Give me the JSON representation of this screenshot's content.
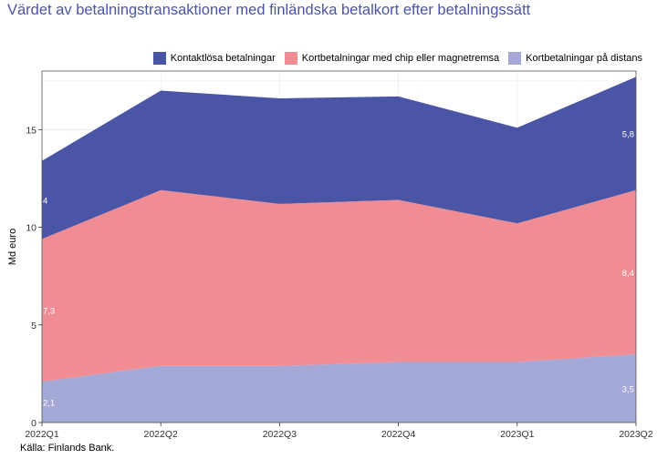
{
  "title": "Värdet av betalningstransaktioner med finländska betalkort efter betalningssätt",
  "source": "Källa: Finlands Bank.",
  "chart_data": {
    "type": "area",
    "stacked": true,
    "categories": [
      "2022Q1",
      "2022Q2",
      "2022Q3",
      "2022Q4",
      "2023Q1",
      "2023Q2"
    ],
    "ylabel": "Md euro",
    "ylim": [
      0,
      18
    ],
    "yticks": [
      0,
      5,
      10,
      15
    ],
    "grid": true,
    "legend_position": "top",
    "series": [
      {
        "name": "Kortbetalningar på distans",
        "color": "#a3a8d6",
        "values": [
          2.1,
          2.9,
          2.9,
          3.1,
          3.1,
          3.5
        ]
      },
      {
        "name": "Kortbetalningar med chip eller magnetremsa",
        "color": "#f08c93",
        "values": [
          7.3,
          9.0,
          8.3,
          8.3,
          7.1,
          8.4
        ]
      },
      {
        "name": "Kontaktlösa betalningar",
        "color": "#4b55a5",
        "values": [
          4.0,
          5.1,
          5.4,
          5.3,
          4.9,
          5.8
        ]
      }
    ],
    "data_labels": [
      {
        "series": 0,
        "index": 0,
        "text": "2,1"
      },
      {
        "series": 1,
        "index": 0,
        "text": "7,3"
      },
      {
        "series": 2,
        "index": 0,
        "text": "4"
      },
      {
        "series": 0,
        "index": 5,
        "text": "3,5"
      },
      {
        "series": 1,
        "index": 5,
        "text": "8,4"
      },
      {
        "series": 2,
        "index": 5,
        "text": "5,8"
      }
    ]
  },
  "legend": [
    {
      "label": "Kontaktlösa betalningar",
      "color": "#4b55a5"
    },
    {
      "label": "Kortbetalningar med chip eller magnetremsa",
      "color": "#f08c93"
    },
    {
      "label": "Kortbetalningar på distans",
      "color": "#a3a8d6"
    }
  ]
}
